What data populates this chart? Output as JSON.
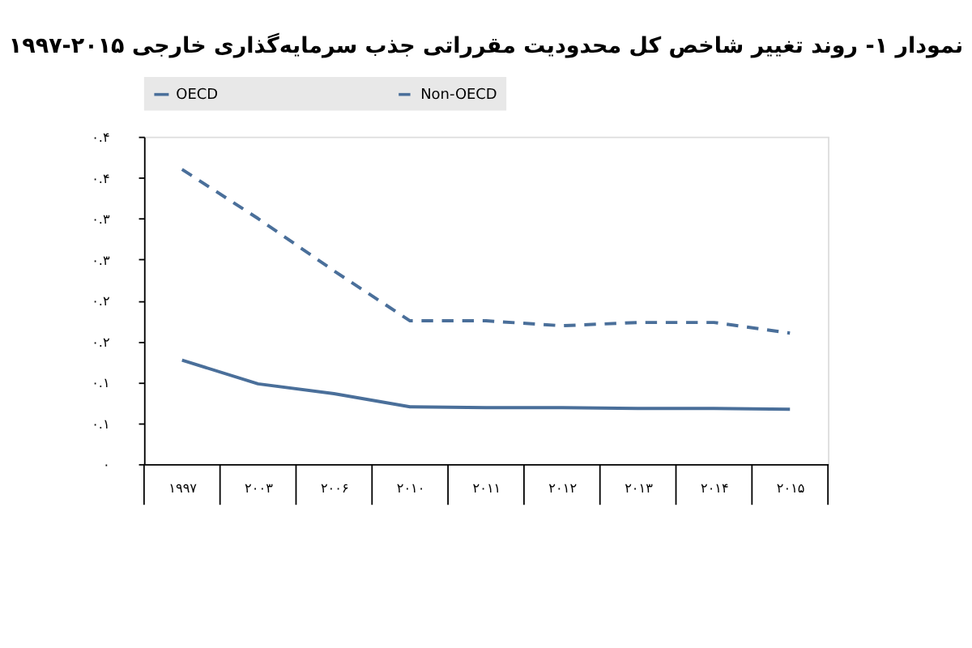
{
  "chart_data": {
    "type": "line",
    "title": "نمودار ۱- روند تغییر شاخص کل محدودیت مقرراتی جذب سرمایه‌گذاری خارجی ۲۰۱۵-۱۹۹۷",
    "categories": [
      "۱۹۹۷",
      "۲۰۰۳",
      "۲۰۰۶",
      "۲۰۱۰",
      "۲۰۱۱",
      "۲۰۱۲",
      "۲۰۱۳",
      "۲۰۱۴",
      "۲۰۱۵"
    ],
    "series": [
      {
        "name": "OECD",
        "color": "#4a6f9a",
        "line_style": "solid",
        "values": [
          0.127,
          0.098,
          0.086,
          0.07,
          0.069,
          0.069,
          0.068,
          0.068,
          0.067
        ]
      },
      {
        "name": "Non-OECD",
        "color": "#4a6f9a",
        "line_style": "dashed",
        "values": [
          0.36,
          0.3,
          0.236,
          0.175,
          0.175,
          0.169,
          0.173,
          0.173,
          0.16
        ]
      }
    ],
    "ylim": [
      0,
      0.4
    ],
    "yticks": [
      {
        "value": 0,
        "label": "۰"
      },
      {
        "value": 0.05,
        "label": "۰.۱"
      },
      {
        "value": 0.1,
        "label": "۰.۱"
      },
      {
        "value": 0.15,
        "label": "۰.۲"
      },
      {
        "value": 0.2,
        "label": "۰.۲"
      },
      {
        "value": 0.25,
        "label": "۰.۳"
      },
      {
        "value": 0.3,
        "label": "۰.۳"
      },
      {
        "value": 0.35,
        "label": "۰.۴"
      },
      {
        "value": 0.4,
        "label": "۰.۴"
      }
    ],
    "grid": false,
    "legend": "top",
    "marker": "none"
  }
}
